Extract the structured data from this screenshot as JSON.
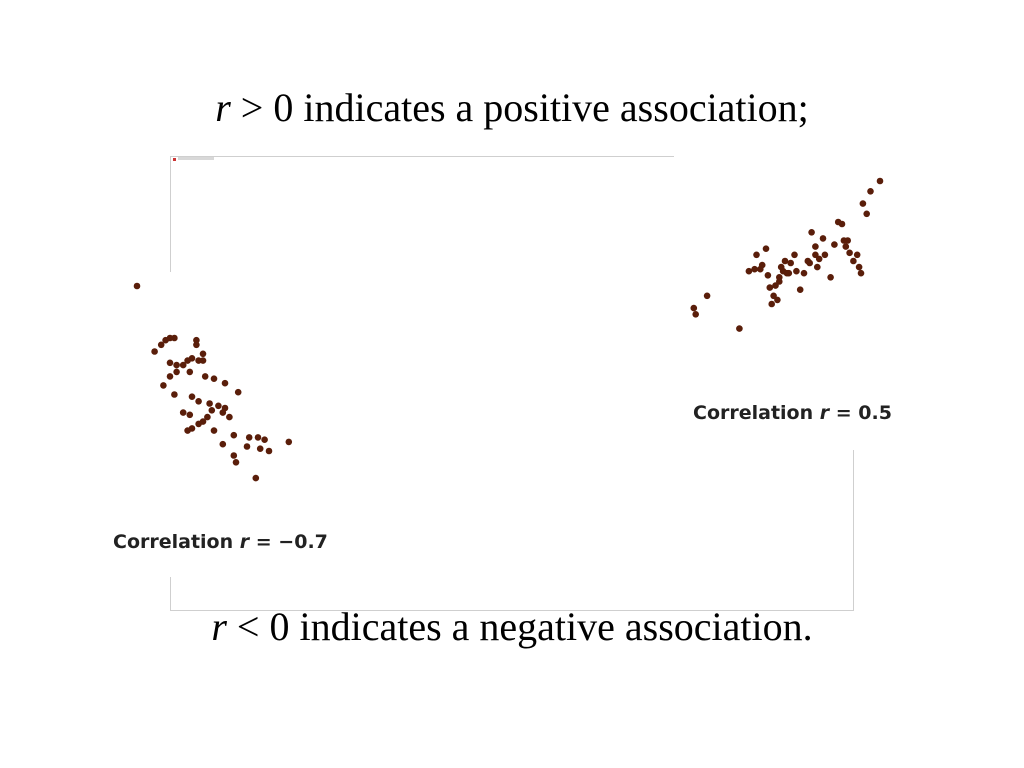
{
  "slide": {
    "top_line": {
      "symbol": "r",
      "relation": ">",
      "rest": "0 indicates a positive association;"
    },
    "bottom_line": {
      "symbol": "r",
      "relation": "<",
      "rest": "0 indicates a negative association."
    }
  },
  "colors": {
    "point": "#5a1e0a",
    "frame": "#cfcfcf",
    "text": "#000000"
  },
  "chart_data": [
    {
      "type": "scatter",
      "title": "Correlation r = −0.7",
      "label_prefix": "Correlation",
      "label_var": "r",
      "label_rest": "= −0.7",
      "r": -0.7,
      "xlim": [
        0,
        100
      ],
      "ylim": [
        0,
        100
      ],
      "grid": false,
      "series": [
        {
          "points": [
            [
              0,
              100
            ],
            [
              8,
              71
            ],
            [
              11,
              74
            ],
            [
              13,
              76
            ],
            [
              15,
              77
            ],
            [
              17,
              77
            ],
            [
              27,
              76
            ],
            [
              27,
              74
            ],
            [
              15,
              66
            ],
            [
              18,
              65
            ],
            [
              21,
              65
            ],
            [
              23,
              67
            ],
            [
              28,
              67
            ],
            [
              30,
              70
            ],
            [
              30,
              67
            ],
            [
              25,
              68
            ],
            [
              15,
              60
            ],
            [
              18,
              62
            ],
            [
              24,
              62
            ],
            [
              31,
              60
            ],
            [
              35,
              59
            ],
            [
              40,
              57
            ],
            [
              46,
              53
            ],
            [
              12,
              56
            ],
            [
              17,
              52
            ],
            [
              25,
              51
            ],
            [
              28,
              49
            ],
            [
              33,
              48
            ],
            [
              37,
              47
            ],
            [
              40,
              46
            ],
            [
              21,
              44
            ],
            [
              24,
              43
            ],
            [
              34,
              45
            ],
            [
              39,
              44
            ],
            [
              42,
              42
            ],
            [
              32,
              42
            ],
            [
              30,
              40
            ],
            [
              28,
              39
            ],
            [
              25,
              37
            ],
            [
              23,
              36
            ],
            [
              35,
              36
            ],
            [
              44,
              34
            ],
            [
              51,
              33
            ],
            [
              55,
              33
            ],
            [
              58,
              32
            ],
            [
              39,
              30
            ],
            [
              50,
              29
            ],
            [
              56,
              28
            ],
            [
              60,
              27
            ],
            [
              69,
              31
            ],
            [
              44,
              25
            ],
            [
              45,
              22
            ],
            [
              54,
              15
            ]
          ]
        }
      ]
    },
    {
      "type": "scatter",
      "title": "Correlation r = 0.5",
      "label_prefix": "Correlation",
      "label_var": "r",
      "label_rest": "= 0.5",
      "r": 0.5,
      "xlim": [
        0,
        100
      ],
      "ylim": [
        0,
        100
      ],
      "grid": false,
      "series": [
        {
          "points": [
            [
              2,
              38
            ],
            [
              3,
              35
            ],
            [
              9,
              44
            ],
            [
              26,
              28
            ],
            [
              31,
              56
            ],
            [
              34,
              57
            ],
            [
              35,
              64
            ],
            [
              37,
              57
            ],
            [
              38,
              59
            ],
            [
              40,
              67
            ],
            [
              41,
              54
            ],
            [
              42,
              48
            ],
            [
              43,
              40
            ],
            [
              44,
              44
            ],
            [
              45,
              49
            ],
            [
              46,
              42
            ],
            [
              47,
              51
            ],
            [
              47,
              53
            ],
            [
              48,
              58
            ],
            [
              49,
              56
            ],
            [
              50,
              61
            ],
            [
              51,
              55
            ],
            [
              52,
              55
            ],
            [
              53,
              60
            ],
            [
              55,
              64
            ],
            [
              56,
              56
            ],
            [
              58,
              47
            ],
            [
              60,
              55
            ],
            [
              62,
              61
            ],
            [
              63,
              60
            ],
            [
              64,
              75
            ],
            [
              66,
              68
            ],
            [
              66,
              64
            ],
            [
              67,
              58
            ],
            [
              68,
              62
            ],
            [
              70,
              72
            ],
            [
              71,
              64
            ],
            [
              74,
              53
            ],
            [
              76,
              69
            ],
            [
              78,
              80
            ],
            [
              80,
              79
            ],
            [
              81,
              71
            ],
            [
              82,
              68
            ],
            [
              83,
              71
            ],
            [
              84,
              65
            ],
            [
              86,
              61
            ],
            [
              88,
              64
            ],
            [
              89,
              58
            ],
            [
              90,
              55
            ],
            [
              91,
              89
            ],
            [
              93,
              84
            ],
            [
              95,
              95
            ],
            [
              100,
              100
            ]
          ]
        }
      ]
    }
  ]
}
